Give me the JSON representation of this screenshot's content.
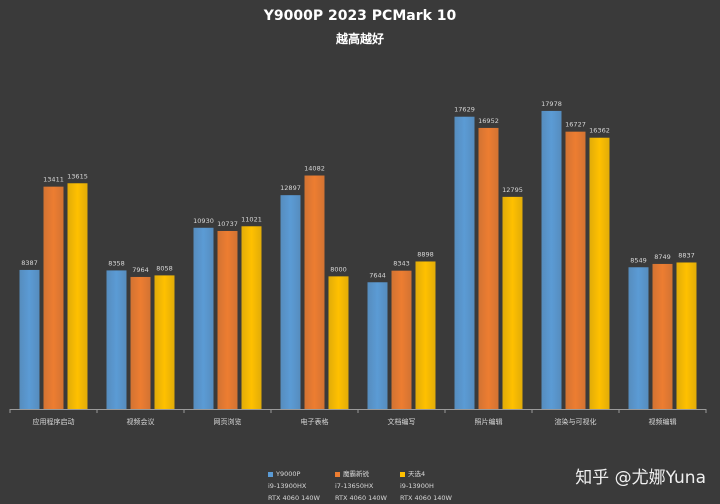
{
  "watermark": "知乎 @尤娜Yuna",
  "chart_data": {
    "type": "bar",
    "title": "Y9000P  2023  PCMark  10",
    "subtitle": "越高越好",
    "categories": [
      "应用程序启动",
      "视频会议",
      "网页浏览",
      "电子表格",
      "文档编写",
      "照片编辑",
      "渲染与可视化",
      "视频编辑"
    ],
    "ylim": [
      0,
      20000
    ],
    "grid": false,
    "legend_position": "bottom",
    "series": [
      {
        "name": "Y9000P",
        "color": "#5b9bd5",
        "specs": [
          "i9-13900HX",
          "RTX 4060 140W"
        ],
        "values": [
          8387,
          8358,
          10930,
          12897,
          7644,
          17629,
          17978,
          8549
        ]
      },
      {
        "name": "魔霸新锐",
        "color": "#ed7d31",
        "specs": [
          "i7-13650HX",
          "RTX 4060 140W"
        ],
        "values": [
          13411,
          7964,
          10737,
          14082,
          8343,
          16952,
          16727,
          8749
        ]
      },
      {
        "name": "天选4",
        "color": "#ffc000",
        "specs": [
          "i9-13900H",
          "RTX 4060 140W"
        ],
        "values": [
          13615,
          8058,
          11021,
          8000,
          8898,
          12795,
          16362,
          8837
        ]
      }
    ]
  }
}
